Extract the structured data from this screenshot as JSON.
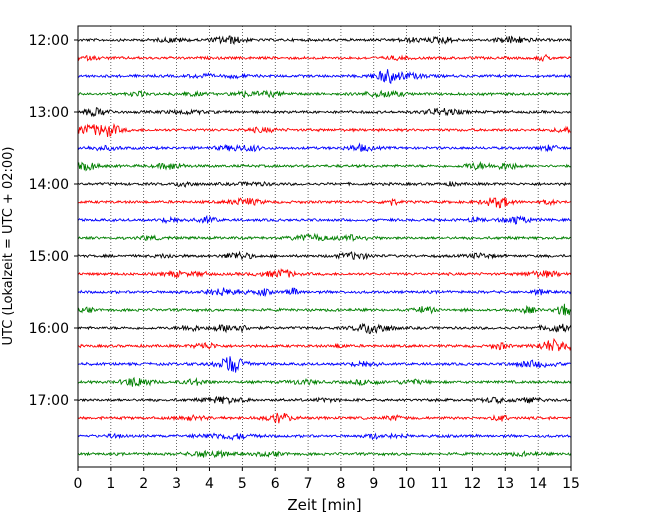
{
  "chart_data": {
    "type": "line",
    "xlabel": "Zeit  [min]",
    "ylabel": "UTC (Lokalzeit = UTC + 02:00)",
    "xlim": [
      0,
      15
    ],
    "x_ticks": [
      "0",
      "1",
      "2",
      "3",
      "4",
      "5",
      "6",
      "7",
      "8",
      "9",
      "10",
      "11",
      "12",
      "13",
      "14",
      "15"
    ],
    "y_ticks": [
      "12:00",
      "13:00",
      "14:00",
      "15:00",
      "16:00",
      "17:00"
    ],
    "grid": "vertical dotted at each minute",
    "trace_interval_minutes": 15,
    "start_time": "12:00",
    "trace_count": 24,
    "trace_colors": [
      "#000000",
      "#ff0000",
      "#0000ff",
      "#008000"
    ]
  }
}
